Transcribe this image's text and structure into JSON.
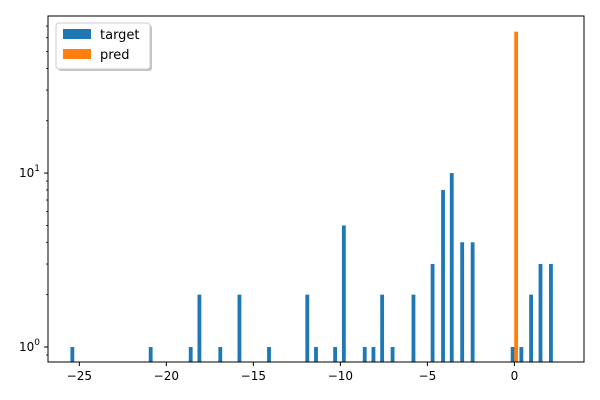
{
  "chart_data": {
    "type": "bar",
    "yscale": "log",
    "xlim": [
      -26.8,
      4.0
    ],
    "ylim": [
      0.82,
      80
    ],
    "grid": false,
    "legend_position": "top-left",
    "bar_width": 0.22,
    "series": [
      {
        "name": "target",
        "color": "#1f77b4",
        "x": [
          -25.4,
          -20.9,
          -18.6,
          -18.1,
          -16.9,
          -15.8,
          -14.1,
          -11.9,
          -11.4,
          -10.3,
          -9.8,
          -8.6,
          -8.1,
          -7.6,
          -7.0,
          -5.8,
          -4.7,
          -4.1,
          -3.6,
          -3.0,
          -2.4,
          -0.1,
          0.4,
          0.96,
          1.5,
          2.1
        ],
        "values": [
          1,
          1,
          1,
          2,
          1,
          2,
          1,
          2,
          1,
          1,
          5,
          1,
          1,
          2,
          1,
          2,
          3,
          8,
          10,
          4,
          4,
          1,
          1,
          2,
          3,
          3
        ]
      },
      {
        "name": "pred",
        "color": "#ff7f0e",
        "x": [
          0.1
        ],
        "values": [
          65
        ]
      }
    ],
    "xticks": [
      {
        "value": -25,
        "label": "−25"
      },
      {
        "value": -20,
        "label": "−20"
      },
      {
        "value": -15,
        "label": "−15"
      },
      {
        "value": -10,
        "label": "−10"
      },
      {
        "value": -5,
        "label": "−5"
      },
      {
        "value": 0,
        "label": "0"
      }
    ],
    "yticks": [
      {
        "value": 1,
        "base": "10",
        "exp": "0"
      },
      {
        "value": 10,
        "base": "10",
        "exp": "1"
      }
    ]
  }
}
